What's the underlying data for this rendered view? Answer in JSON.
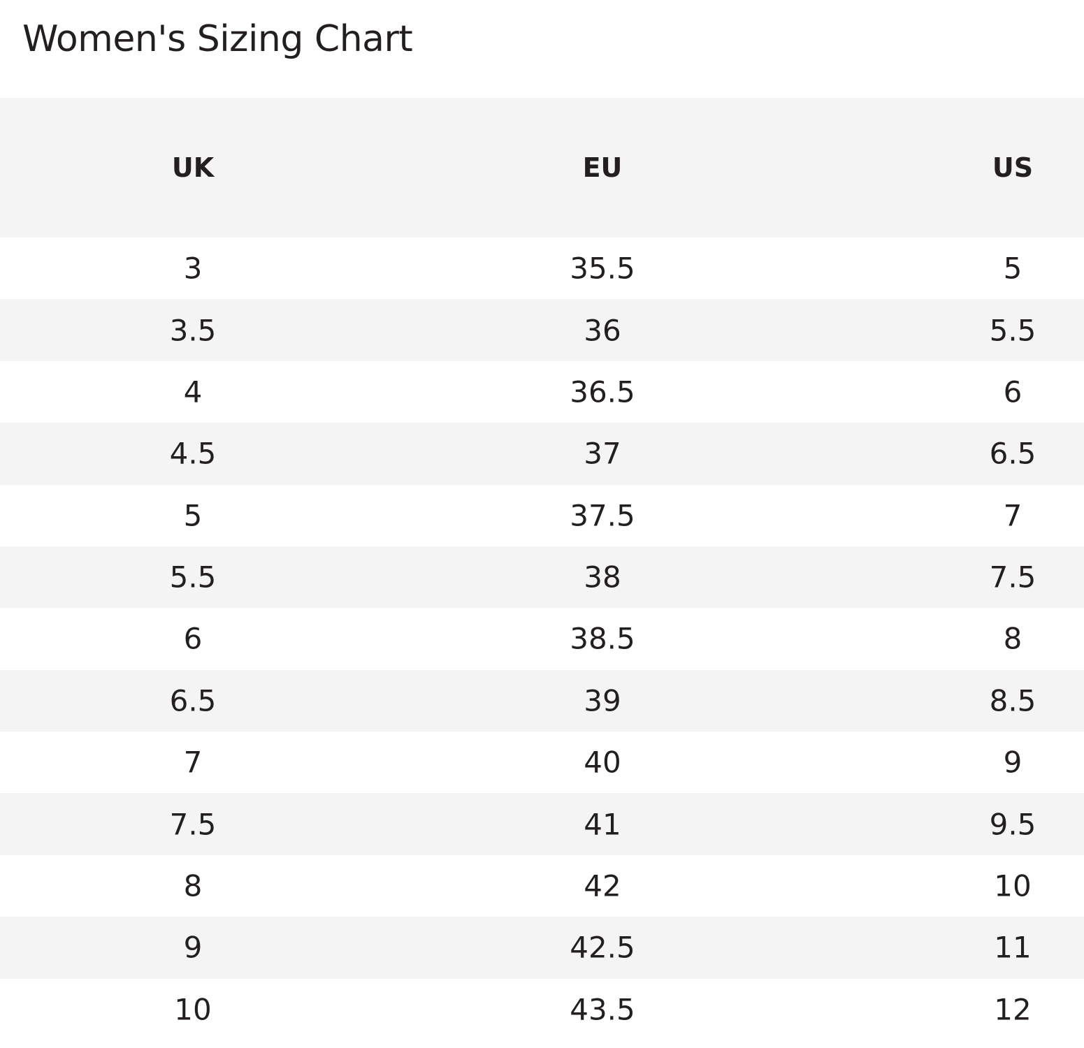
{
  "header": {
    "title": "Women's Sizing Chart"
  },
  "table": {
    "columns": [
      "UK",
      "EU",
      "US"
    ],
    "rows": [
      [
        3,
        35.5,
        5
      ],
      [
        3.5,
        36,
        5.5
      ],
      [
        4,
        36.5,
        6
      ],
      [
        4.5,
        37,
        6.5
      ],
      [
        5,
        37.5,
        7
      ],
      [
        5.5,
        38,
        7.5
      ],
      [
        6,
        38.5,
        8
      ],
      [
        6.5,
        39,
        8.5
      ],
      [
        7,
        40,
        9
      ],
      [
        7.5,
        41,
        9.5
      ],
      [
        8,
        42,
        10
      ],
      [
        9,
        42.5,
        11
      ],
      [
        10,
        43.5,
        12
      ]
    ]
  }
}
